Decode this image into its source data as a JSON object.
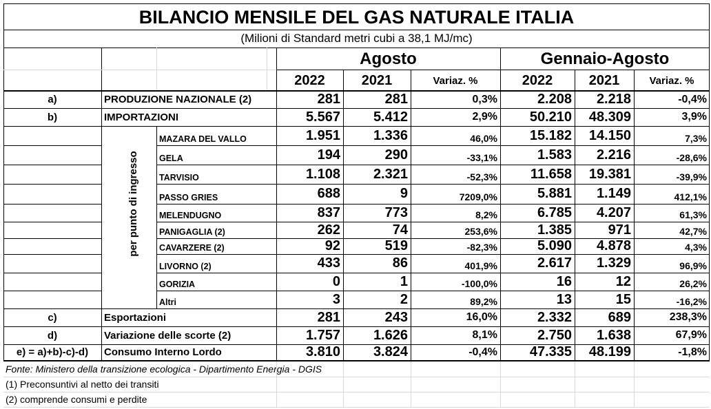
{
  "title": "BILANCIO MENSILE DEL GAS NATURALE ITALIA",
  "subtitle": "(Milioni di Standard metri cubi a 38,1 MJ/mc)",
  "period_month": "Agosto",
  "period_ytd": "Gennaio-Agosto",
  "col_2022": "2022",
  "col_2021": "2021",
  "col_var": "Variaz. %",
  "vertical_label": "per punto di ingresso",
  "rows": [
    {
      "code": "a)",
      "label": "PRODUZIONE NAZIONALE (2)",
      "m22": "281",
      "m21": "281",
      "mvar": "0,3%",
      "y22": "2.208",
      "y21": "2.218",
      "yvar": "-0,4%"
    },
    {
      "code": "b)",
      "label": "IMPORTAZIONI",
      "m22": "5.567",
      "m21": "5.412",
      "mvar": "2,9%",
      "y22": "50.210",
      "y21": "48.309",
      "yvar": "3,9%"
    },
    {
      "code": "",
      "label": "MAZARA DEL VALLO",
      "m22": "1.951",
      "m21": "1.336",
      "mvar": "46,0%",
      "y22": "15.182",
      "y21": "14.150",
      "yvar": "7,3%"
    },
    {
      "code": "",
      "label": "GELA",
      "m22": "194",
      "m21": "290",
      "mvar": "-33,1%",
      "y22": "1.583",
      "y21": "2.216",
      "yvar": "-28,6%"
    },
    {
      "code": "",
      "label": "TARVISIO",
      "m22": "1.108",
      "m21": "2.321",
      "mvar": "-52,3%",
      "y22": "11.658",
      "y21": "19.381",
      "yvar": "-39,9%"
    },
    {
      "code": "",
      "label": "PASSO GRIES",
      "m22": "688",
      "m21": "9",
      "mvar": "7209,0%",
      "y22": "5.881",
      "y21": "1.149",
      "yvar": "412,1%"
    },
    {
      "code": "",
      "label": "MELENDUGNO",
      "m22": "837",
      "m21": "773",
      "mvar": "8,2%",
      "y22": "6.785",
      "y21": "4.207",
      "yvar": "61,3%"
    },
    {
      "code": "",
      "label": "PANIGAGLIA (2)",
      "m22": "262",
      "m21": "74",
      "mvar": "253,6%",
      "y22": "1.385",
      "y21": "971",
      "yvar": "42,7%"
    },
    {
      "code": "",
      "label": "CAVARZERE (2)",
      "m22": "92",
      "m21": "519",
      "mvar": "-82,3%",
      "y22": "5.090",
      "y21": "4.878",
      "yvar": "4,3%"
    },
    {
      "code": "",
      "label": "LIVORNO (2)",
      "m22": "433",
      "m21": "86",
      "mvar": "401,9%",
      "y22": "2.617",
      "y21": "1.329",
      "yvar": "96,9%"
    },
    {
      "code": "",
      "label": "GORIZIA",
      "m22": "0",
      "m21": "1",
      "mvar": "-100,0%",
      "y22": "16",
      "y21": "12",
      "yvar": "26,2%"
    },
    {
      "code": "",
      "label": "Altri",
      "m22": "3",
      "m21": "2",
      "mvar": "89,2%",
      "y22": "13",
      "y21": "15",
      "yvar": "-16,2%"
    },
    {
      "code": "c)",
      "label": "Esportazioni",
      "m22": "281",
      "m21": "243",
      "mvar": "16,0%",
      "y22": "2.332",
      "y21": "689",
      "yvar": "238,3%"
    },
    {
      "code": "d)",
      "label": "Variazione delle scorte (2)",
      "m22": "1.757",
      "m21": "1.626",
      "mvar": "8,1%",
      "y22": "2.750",
      "y21": "1.638",
      "yvar": "67,9%"
    },
    {
      "code": "e) = a)+b)-c)-d)",
      "label": "Consumo Interno Lordo",
      "m22": "3.810",
      "m21": "3.824",
      "mvar": "-0,4%",
      "y22": "47.335",
      "y21": "48.199",
      "yvar": "-1,8%"
    }
  ],
  "footnotes": [
    "Fonte: Ministero della transizione ecologica - Dipartimento Energia - DGIS",
    "(1) Preconsuntivi al netto dei transiti",
    "(2) comprende consumi e perdite"
  ]
}
